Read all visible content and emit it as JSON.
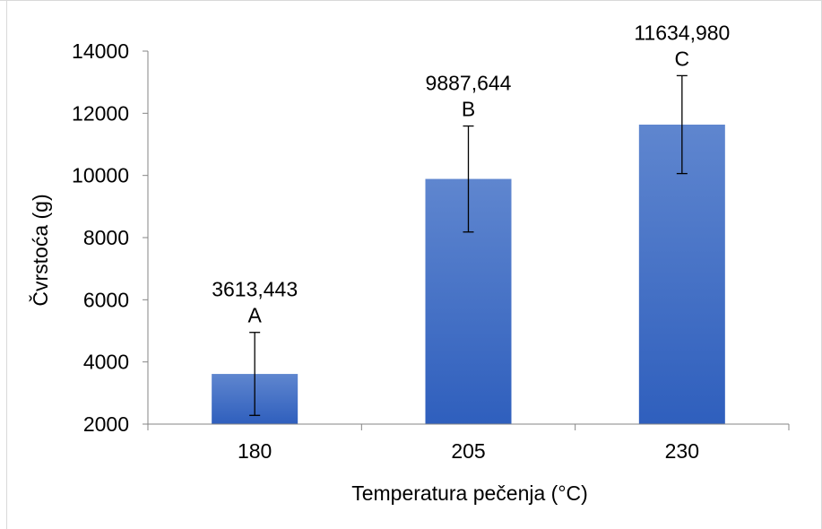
{
  "chart_data": {
    "type": "bar",
    "categories": [
      "180",
      "205",
      "230"
    ],
    "values": [
      3613.443,
      9887.644,
      11634.98
    ],
    "value_labels": [
      "3613,443",
      "9887,644",
      "11634,980"
    ],
    "group_letters": [
      "A",
      "B",
      "C"
    ],
    "error_low": [
      2280,
      8180,
      10060
    ],
    "error_high": [
      4950,
      11590,
      13210
    ],
    "xlabel": "Temperatura pečenja  (°C)",
    "ylabel": "Čvrstoća (g)",
    "ylim": [
      2000,
      14000
    ],
    "yticks": [
      "2000",
      "4000",
      "6000",
      "8000",
      "10000",
      "12000",
      "14000"
    ],
    "grid": false,
    "legend": "none",
    "colors": {
      "bar_top": "#5f86cf",
      "bar_bottom": "#2f5fbd",
      "axis": "#868686",
      "error": "#000000"
    }
  }
}
